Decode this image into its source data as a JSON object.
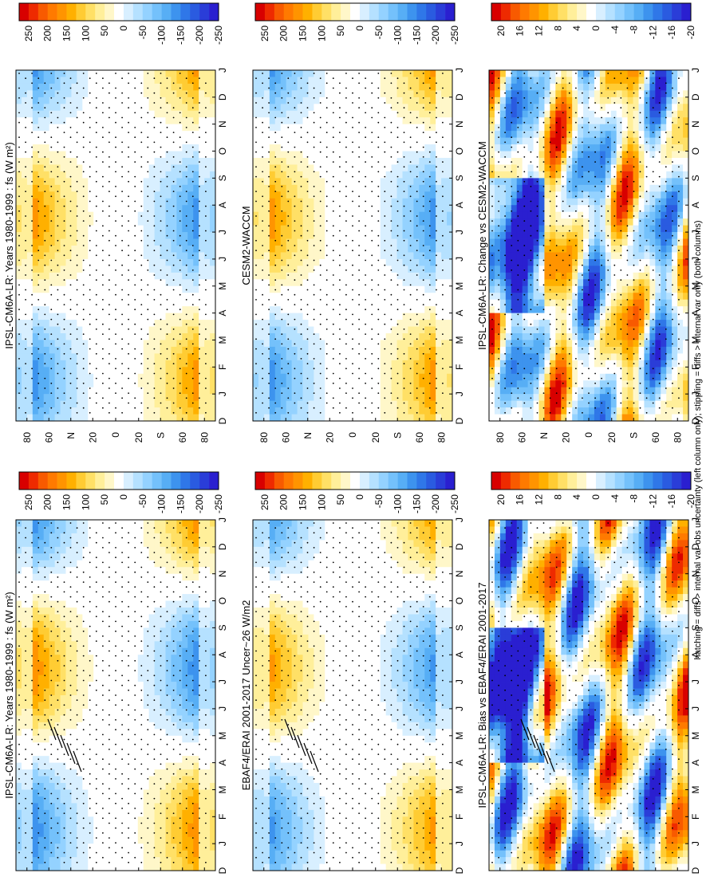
{
  "figure": {
    "caption": "hatching = diffs > internal var-obs uncertainty (left column only); stippling = diffs > internal var only (both columns)"
  },
  "chart_data": [
    {
      "id": "p1",
      "type": "heatmap",
      "title": "IPSL-CM6A-LR: Years 1980-1999 : fs (W m²)",
      "x": [
        "D",
        "J",
        "F",
        "M",
        "A",
        "M",
        "J",
        "J",
        "A",
        "S",
        "O",
        "N",
        "D",
        "J"
      ],
      "y": [
        "80",
        "60",
        "N",
        "20",
        "0",
        "20",
        "S",
        "60",
        "80"
      ],
      "colorbar": {
        "ticks": [
          "250",
          "200",
          "150",
          "100",
          "50",
          "0",
          "-50",
          "-100",
          "-150",
          "-200",
          "-250"
        ],
        "vmin": -250,
        "vmax": 250
      },
      "amplitude": 220,
      "hatched": true
    },
    {
      "id": "p2",
      "type": "heatmap",
      "title": "IPSL-CM6A-LR: Years 1980-1999 : fs (W m²)",
      "x": [
        "D",
        "J",
        "F",
        "M",
        "A",
        "M",
        "J",
        "J",
        "A",
        "S",
        "O",
        "N",
        "D",
        "J"
      ],
      "y": [
        "80",
        "60",
        "N",
        "20",
        "0",
        "20",
        "S",
        "60",
        "80"
      ],
      "colorbar": {
        "ticks": [
          "250",
          "200",
          "150",
          "100",
          "50",
          "0",
          "-50",
          "-100",
          "-150",
          "-200",
          "-250"
        ],
        "vmin": -250,
        "vmax": 250
      },
      "amplitude": 210,
      "hatched": false
    },
    {
      "id": "p3",
      "type": "heatmap",
      "title": "EBAF4/ERAI 2001-2017 Uncer~26 W/m2",
      "x": [
        "D",
        "J",
        "F",
        "M",
        "A",
        "M",
        "J",
        "J",
        "A",
        "S",
        "O",
        "N",
        "D",
        "J"
      ],
      "y": [
        "80",
        "60",
        "N",
        "20",
        "0",
        "20",
        "S",
        "60",
        "80"
      ],
      "colorbar": {
        "ticks": [
          "250",
          "200",
          "150",
          "100",
          "50",
          "0",
          "-50",
          "-100",
          "-150",
          "-200",
          "-250"
        ],
        "vmin": -250,
        "vmax": 250
      },
      "amplitude": 200,
      "hatched": true
    },
    {
      "id": "p4",
      "type": "heatmap",
      "title": "CESM2-WACCM",
      "x": [
        "D",
        "J",
        "F",
        "M",
        "A",
        "M",
        "J",
        "J",
        "A",
        "S",
        "O",
        "N",
        "D",
        "J"
      ],
      "y": [
        "80",
        "60",
        "N",
        "20",
        "0",
        "20",
        "S",
        "60",
        "80"
      ],
      "colorbar": {
        "ticks": [
          "250",
          "200",
          "150",
          "100",
          "50",
          "0",
          "-50",
          "-100",
          "-150",
          "-200",
          "-250"
        ],
        "vmin": -250,
        "vmax": 250
      },
      "amplitude": 205,
      "hatched": false
    },
    {
      "id": "p5",
      "type": "heatmap",
      "title": "IPSL-CM6A-LR: Bias vs EBAF4/ERAI 2001-2017",
      "x": [
        "D",
        "J",
        "F",
        "M",
        "A",
        "M",
        "J",
        "J",
        "A",
        "S",
        "O",
        "N",
        "D",
        "J"
      ],
      "y": [
        "80",
        "60",
        "N",
        "20",
        "0",
        "20",
        "S",
        "60",
        "80"
      ],
      "colorbar": {
        "ticks": [
          "20",
          "16",
          "12",
          "8",
          "4",
          "0",
          "-4",
          "-8",
          "-12",
          "-16",
          "-20"
        ],
        "vmin": -22,
        "vmax": 22
      },
      "amplitude": 18,
      "hatched": true
    },
    {
      "id": "p6",
      "type": "heatmap",
      "title": "IPSL-CM6A-LR: Change vs CESM2-WACCM",
      "x": [
        "D",
        "J",
        "F",
        "M",
        "A",
        "M",
        "J",
        "J",
        "A",
        "S",
        "O",
        "N",
        "D",
        "J"
      ],
      "y": [
        "80",
        "60",
        "N",
        "20",
        "0",
        "20",
        "S",
        "60",
        "80"
      ],
      "colorbar": {
        "ticks": [
          "20",
          "16",
          "12",
          "8",
          "4",
          "0",
          "-4",
          "-8",
          "-12",
          "-16",
          "-20"
        ],
        "vmin": -22,
        "vmax": 22
      },
      "amplitude": 16,
      "hatched": false
    }
  ]
}
